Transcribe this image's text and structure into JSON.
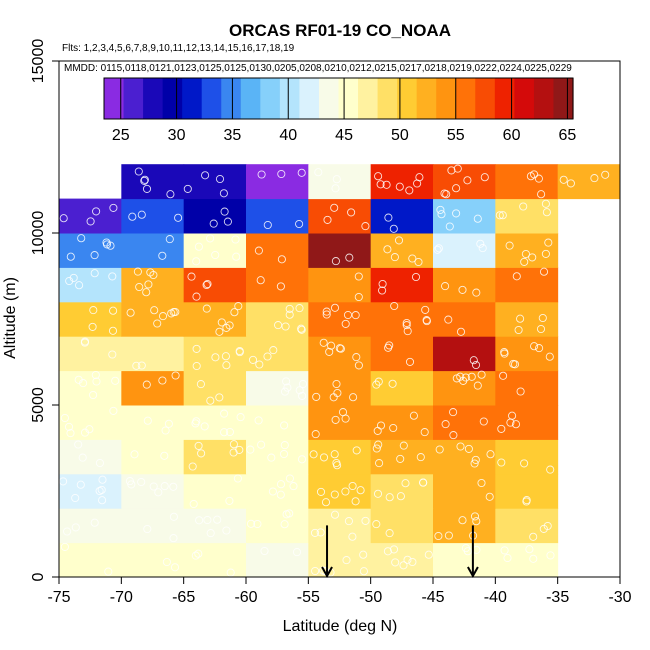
{
  "chart_data": {
    "type": "heatmap",
    "title": "ORCAS RF01-19 CO_NOAA",
    "flights_label": "Flts: 1,2,3,4,5,6,7,8,9,10,11,12,13,14,15,16,17,18,19",
    "dates_label": "MMDD: 0115,0118,0121,0123,0125,0125,0130,0205,0208,0210,0212,0215,0217,0218,0219,0222,0224,0225,0229",
    "xlabel": "Latitude (deg N)",
    "ylabel": "Altitude (m)",
    "xlim": [
      -75,
      -30
    ],
    "ylim": [
      0,
      15000
    ],
    "x_ticks": [
      -75,
      -70,
      -65,
      -60,
      -55,
      -50,
      -45,
      -40,
      -35,
      -30
    ],
    "y_ticks": [
      0,
      5000,
      10000,
      15000
    ],
    "colorbar": {
      "min": 23.5,
      "max": 65.5,
      "ticks": [
        25,
        30,
        35,
        40,
        45,
        50,
        55,
        60,
        65
      ],
      "colors": [
        "#8a2be2",
        "#4b1fd0",
        "#1a08b8",
        "#0000a8",
        "#0018c8",
        "#1e50e8",
        "#3a86f0",
        "#5ab4f6",
        "#86d0fa",
        "#b4e4fc",
        "#daf2fd",
        "#f8fbe8",
        "#ffffcc",
        "#fff2a0",
        "#ffe066",
        "#ffcc33",
        "#ffb020",
        "#ff9410",
        "#ff7208",
        "#f84c04",
        "#ee2200",
        "#d40a0a",
        "#b41010",
        "#901818"
      ]
    },
    "lat_bins": [
      -75,
      -70,
      -65,
      -60,
      -55,
      -50,
      -45,
      -40,
      -35,
      -30
    ],
    "alt_bins": [
      0,
      1000,
      2000,
      3000,
      4000,
      5000,
      6000,
      7000,
      8000,
      9000,
      10000,
      11000,
      12000
    ],
    "cells": [
      [
        0,
        0,
        45.5
      ],
      [
        1,
        0,
        45.5
      ],
      [
        2,
        0,
        45
      ],
      [
        3,
        0,
        44
      ],
      [
        4,
        0,
        47.5
      ],
      [
        5,
        0,
        47
      ],
      [
        6,
        0,
        46
      ],
      [
        7,
        0,
        46
      ],
      [
        0,
        1,
        43.5
      ],
      [
        1,
        1,
        44
      ],
      [
        2,
        1,
        43.5
      ],
      [
        3,
        1,
        44.5
      ],
      [
        4,
        1,
        47.5
      ],
      [
        5,
        1,
        48
      ],
      [
        6,
        1,
        52
      ],
      [
        7,
        1,
        48
      ],
      [
        0,
        2,
        42
      ],
      [
        1,
        2,
        44
      ],
      [
        2,
        2,
        44.5
      ],
      [
        3,
        2,
        45.5
      ],
      [
        4,
        2,
        51
      ],
      [
        5,
        2,
        48.5
      ],
      [
        6,
        2,
        53
      ],
      [
        7,
        2,
        51
      ],
      [
        0,
        3,
        43.5
      ],
      [
        1,
        3,
        45
      ],
      [
        2,
        3,
        48.5
      ],
      [
        3,
        3,
        45
      ],
      [
        4,
        3,
        50
      ],
      [
        5,
        3,
        52
      ],
      [
        6,
        3,
        52.5
      ],
      [
        7,
        3,
        50.5
      ],
      [
        0,
        4,
        45.5
      ],
      [
        1,
        4,
        46
      ],
      [
        2,
        4,
        46
      ],
      [
        3,
        4,
        46
      ],
      [
        4,
        4,
        53.5
      ],
      [
        5,
        4,
        53.5
      ],
      [
        6,
        4,
        55
      ],
      [
        7,
        4,
        56
      ],
      [
        0,
        5,
        46
      ],
      [
        1,
        5,
        54
      ],
      [
        2,
        5,
        48
      ],
      [
        3,
        5,
        43.5
      ],
      [
        4,
        5,
        54
      ],
      [
        5,
        5,
        50.5
      ],
      [
        6,
        5,
        54.5
      ],
      [
        7,
        5,
        55
      ],
      [
        0,
        6,
        46.5
      ],
      [
        1,
        6,
        47
      ],
      [
        2,
        6,
        48
      ],
      [
        3,
        6,
        49.5
      ],
      [
        4,
        6,
        54
      ],
      [
        5,
        6,
        56
      ],
      [
        6,
        6,
        62
      ],
      [
        7,
        6,
        54
      ],
      [
        0,
        7,
        51
      ],
      [
        1,
        7,
        51.5
      ],
      [
        2,
        7,
        51.5
      ],
      [
        3,
        7,
        48
      ],
      [
        4,
        7,
        56
      ],
      [
        5,
        7,
        56
      ],
      [
        6,
        7,
        55
      ],
      [
        7,
        7,
        53
      ],
      [
        0,
        8,
        40.5
      ],
      [
        1,
        8,
        53
      ],
      [
        2,
        8,
        58
      ],
      [
        3,
        8,
        55
      ],
      [
        4,
        8,
        53.5
      ],
      [
        5,
        8,
        60
      ],
      [
        6,
        8,
        54
      ],
      [
        7,
        8,
        55
      ],
      [
        0,
        9,
        34
      ],
      [
        1,
        9,
        34
      ],
      [
        2,
        9,
        46
      ],
      [
        3,
        9,
        56
      ],
      [
        4,
        9,
        64
      ],
      [
        5,
        9,
        52
      ],
      [
        6,
        9,
        41
      ],
      [
        7,
        9,
        53
      ],
      [
        0,
        10,
        26
      ],
      [
        1,
        10,
        33
      ],
      [
        2,
        10,
        30
      ],
      [
        3,
        10,
        33
      ],
      [
        4,
        10,
        57.5
      ],
      [
        5,
        10,
        31
      ],
      [
        6,
        10,
        39
      ],
      [
        7,
        10,
        48.5
      ],
      [
        1,
        11,
        28
      ],
      [
        2,
        11,
        28
      ],
      [
        3,
        11,
        25
      ],
      [
        4,
        11,
        43.5
      ],
      [
        5,
        11,
        60
      ],
      [
        6,
        11,
        57.5
      ],
      [
        7,
        11,
        56
      ],
      [
        8,
        11,
        53
      ]
    ],
    "markers": [
      {
        "lat": -53.5,
        "alt": 800
      },
      {
        "lat": -41.8,
        "alt": 800
      }
    ]
  }
}
